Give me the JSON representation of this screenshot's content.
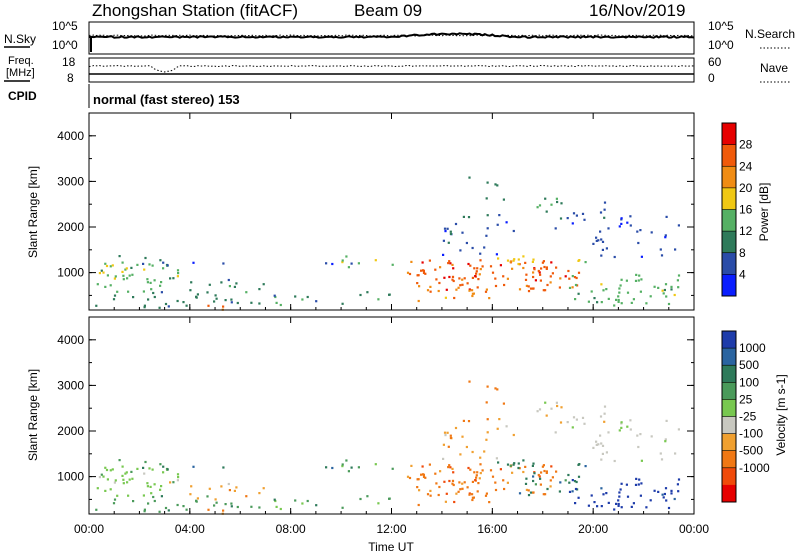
{
  "header": {
    "station": "Zhongshan Station (fitACF)",
    "beam": "Beam 09",
    "date": "16/Nov/2019"
  },
  "panels": {
    "nsky_label": "N.Sky",
    "nsky_ticks": [
      "10^5",
      "10^0"
    ],
    "nsearch_label": "N.Search",
    "freq_label_1": "Freq.",
    "freq_label_2": "[MHz]",
    "freq_ticks": [
      "18",
      "8"
    ],
    "nave_label": "Nave",
    "nave_ticks": [
      "60",
      "0"
    ],
    "cpid_label": "CPID",
    "mode_text": "normal (fast stereo) 153"
  },
  "chart_data": [
    {
      "type": "heatmap",
      "name": "power",
      "xlabel": "Time UT",
      "ylabel": "Slant Range [km]",
      "x_ticks": [
        "00:00",
        "04:00",
        "08:00",
        "12:00",
        "16:00",
        "20:00",
        "00:00"
      ],
      "xlim_hours": [
        0,
        24
      ],
      "y_ticks": [
        1000,
        2000,
        3000,
        4000
      ],
      "ylim": [
        180,
        4500
      ],
      "colorbar_label": "Power [dB]",
      "colorbar_ticks": [
        "4",
        "8",
        "12",
        "16",
        "20",
        "24",
        "28"
      ],
      "colorbar_range": [
        0,
        30
      ],
      "colors": [
        "#0a1eff",
        "#2a4ca8",
        "#2e7a5a",
        "#55b064",
        "#f0c814",
        "#f08c14",
        "#f05a0a",
        "#e60000"
      ]
    },
    {
      "type": "heatmap",
      "name": "velocity",
      "xlabel": "Time UT",
      "ylabel": "Slant Range [km]",
      "x_ticks": [
        "00:00",
        "04:00",
        "08:00",
        "12:00",
        "16:00",
        "20:00",
        "00:00"
      ],
      "xlim_hours": [
        0,
        24
      ],
      "y_ticks": [
        1000,
        2000,
        3000,
        4000
      ],
      "ylim": [
        180,
        4500
      ],
      "colorbar_label": "Velocity [m s-1]",
      "colorbar_ticks": [
        "1000",
        "500",
        "100",
        "25",
        "-25",
        "-100",
        "-500",
        "-1000"
      ],
      "colors": [
        "#1e3caa",
        "#2a64a0",
        "#2e7a5a",
        "#4a9a5a",
        "#78c850",
        "#c8c8c0",
        "#f0a030",
        "#f07814",
        "#f04a0a",
        "#e60000"
      ]
    }
  ]
}
